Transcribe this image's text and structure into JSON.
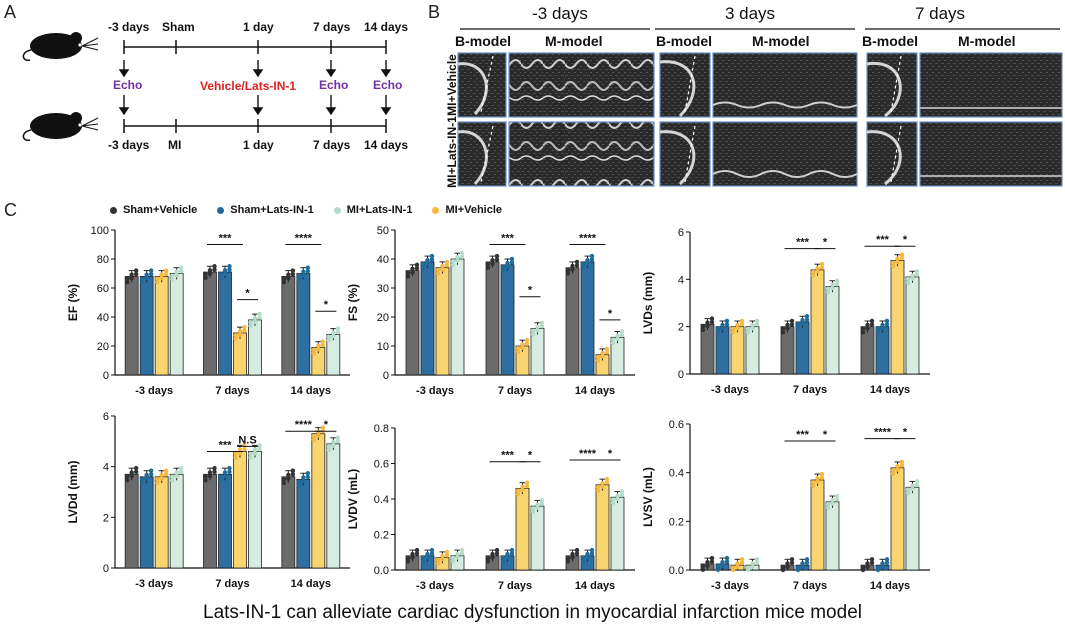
{
  "panels": {
    "a": "A",
    "b": "B",
    "c": "C"
  },
  "timeline": {
    "top_labels": [
      "-3 days",
      "Sham",
      "1 day",
      "7 days",
      "14 days"
    ],
    "bottom_labels": [
      "-3 days",
      "MI",
      "1 day",
      "7 days",
      "14 days"
    ],
    "echo_labels": [
      "Echo",
      "Echo",
      "Echo"
    ],
    "treatment": "Vehicle/Lats-IN-1"
  },
  "echo": {
    "timepoints": [
      "-3 days",
      "3 days",
      "7 days"
    ],
    "modes": [
      "B-model",
      "M-model"
    ],
    "rows": [
      "MI+Vehicle",
      "MI+Lats-IN-1"
    ]
  },
  "legend": [
    {
      "label": "Sham+Vehicle",
      "color": "#333333"
    },
    {
      "label": "Sham+Lats-IN-1",
      "color": "#1e6b9c"
    },
    {
      "label": "MI+Lats-IN-1",
      "color": "#cfe8dc"
    },
    {
      "label": "MI+Vehicle",
      "color": "#f7c744"
    }
  ],
  "colors": {
    "bar": [
      "#6b6b6b",
      "#2d6fa1",
      "#f8d56f",
      "#d6ece1"
    ],
    "dot": [
      "#333333",
      "#1e6b9c",
      "#f4b940",
      "#b5dcc8"
    ]
  },
  "chart_data": [
    {
      "type": "bar",
      "ylabel": "EF (%)",
      "ylim": [
        0,
        100
      ],
      "yticks": [
        "0",
        "20",
        "40",
        "60",
        "80",
        "100"
      ],
      "categories": [
        "-3 days",
        "7 days",
        "14 days"
      ],
      "series": [
        {
          "name": "Sham+Vehicle",
          "values": [
            68,
            71,
            68
          ]
        },
        {
          "name": "Sham+Lats-IN-1",
          "values": [
            68,
            71,
            70
          ]
        },
        {
          "name": "MI+Vehicle",
          "values": [
            68,
            29,
            19
          ]
        },
        {
          "name": "MI+Lats-IN-1",
          "values": [
            70,
            38,
            28
          ]
        }
      ],
      "annotations": [
        {
          "label": "***",
          "group": 1,
          "from": 0,
          "to": 2,
          "y": 90
        },
        {
          "label": "*",
          "group": 1,
          "from": 2,
          "to": 3,
          "y": 52
        },
        {
          "label": "****",
          "group": 2,
          "from": 0,
          "to": 2,
          "y": 90
        },
        {
          "label": "*",
          "group": 2,
          "from": 2,
          "to": 3,
          "y": 44
        }
      ]
    },
    {
      "type": "bar",
      "ylabel": "FS (%)",
      "ylim": [
        0,
        50
      ],
      "yticks": [
        "0",
        "10",
        "20",
        "30",
        "40",
        "50"
      ],
      "categories": [
        "-3 days",
        "7 days",
        "14 days"
      ],
      "series": [
        {
          "name": "Sham+Vehicle",
          "values": [
            36,
            39,
            37
          ]
        },
        {
          "name": "Sham+Lats-IN-1",
          "values": [
            39,
            38,
            39
          ]
        },
        {
          "name": "MI+Vehicle",
          "values": [
            37,
            10,
            7
          ]
        },
        {
          "name": "MI+Lats-IN-1",
          "values": [
            40,
            16,
            13
          ]
        }
      ],
      "annotations": [
        {
          "label": "***",
          "group": 1,
          "from": 0,
          "to": 2,
          "y": 45
        },
        {
          "label": "*",
          "group": 1,
          "from": 2,
          "to": 3,
          "y": 27
        },
        {
          "label": "****",
          "group": 2,
          "from": 0,
          "to": 2,
          "y": 45
        },
        {
          "label": "*",
          "group": 2,
          "from": 2,
          "to": 3,
          "y": 19
        }
      ]
    },
    {
      "type": "bar",
      "ylabel": "LVDs (mm)",
      "ylim": [
        0,
        6
      ],
      "yticks": [
        "0",
        "2",
        "4",
        "6"
      ],
      "categories": [
        "-3 days",
        "7 days",
        "14 days"
      ],
      "series": [
        {
          "name": "Sham+Vehicle",
          "values": [
            2.1,
            2.0,
            2.0
          ]
        },
        {
          "name": "Sham+Lats-IN-1",
          "values": [
            2.0,
            2.2,
            2.0
          ]
        },
        {
          "name": "MI+Vehicle",
          "values": [
            2.0,
            4.4,
            4.8
          ]
        },
        {
          "name": "MI+Lats-IN-1",
          "values": [
            2.0,
            3.7,
            4.1
          ]
        }
      ],
      "annotations": [
        {
          "label": "***",
          "group": 1,
          "from": 0,
          "to": 2,
          "y": 5.3
        },
        {
          "label": "*",
          "group": 1,
          "from": 2,
          "to": 3,
          "y": 5.3
        },
        {
          "label": "***",
          "group": 2,
          "from": 0,
          "to": 2,
          "y": 5.4
        },
        {
          "label": "*",
          "group": 2,
          "from": 2,
          "to": 3,
          "y": 5.4
        }
      ]
    },
    {
      "type": "bar",
      "ylabel": "LVDd (mm)",
      "ylim": [
        0,
        6
      ],
      "yticks": [
        "0",
        "2",
        "4",
        "6"
      ],
      "categories": [
        "-3 days",
        "7 days",
        "14 days"
      ],
      "series": [
        {
          "name": "Sham+Vehicle",
          "values": [
            3.7,
            3.7,
            3.6
          ]
        },
        {
          "name": "Sham+Lats-IN-1",
          "values": [
            3.6,
            3.7,
            3.5
          ]
        },
        {
          "name": "MI+Vehicle",
          "values": [
            3.6,
            4.6,
            5.3
          ]
        },
        {
          "name": "MI+Lats-IN-1",
          "values": [
            3.7,
            4.6,
            4.9
          ]
        }
      ],
      "annotations": [
        {
          "label": "***",
          "group": 1,
          "from": 0,
          "to": 2,
          "y": 4.6
        },
        {
          "label": "N.S",
          "group": 1,
          "from": 2,
          "to": 3,
          "y": 4.8
        },
        {
          "label": "****",
          "group": 2,
          "from": 0,
          "to": 2,
          "y": 5.4
        },
        {
          "label": "*",
          "group": 2,
          "from": 2,
          "to": 3,
          "y": 5.4
        }
      ]
    },
    {
      "type": "bar",
      "ylabel": "LVDV (mL)",
      "ylim": [
        0,
        0.8
      ],
      "yticks": [
        "0.0",
        "0.2",
        "0.4",
        "0.6",
        "0.8"
      ],
      "categories": [
        "-3 days",
        "7 days",
        "14 days"
      ],
      "series": [
        {
          "name": "Sham+Vehicle",
          "values": [
            0.08,
            0.08,
            0.08
          ]
        },
        {
          "name": "Sham+Lats-IN-1",
          "values": [
            0.08,
            0.08,
            0.08
          ]
        },
        {
          "name": "MI+Vehicle",
          "values": [
            0.07,
            0.46,
            0.48
          ]
        },
        {
          "name": "MI+Lats-IN-1",
          "values": [
            0.08,
            0.36,
            0.41
          ]
        }
      ],
      "annotations": [
        {
          "label": "***",
          "group": 1,
          "from": 0,
          "to": 2,
          "y": 0.61
        },
        {
          "label": "*",
          "group": 1,
          "from": 2,
          "to": 3,
          "y": 0.61
        },
        {
          "label": "****",
          "group": 2,
          "from": 0,
          "to": 2,
          "y": 0.62
        },
        {
          "label": "*",
          "group": 2,
          "from": 2,
          "to": 3,
          "y": 0.62
        }
      ]
    },
    {
      "type": "bar",
      "ylabel": "LVSV (mL)",
      "ylim": [
        0,
        0.6
      ],
      "yticks": [
        "0.0",
        "0.2",
        "0.4",
        "0.6"
      ],
      "categories": [
        "-3 days",
        "7 days",
        "14 days"
      ],
      "series": [
        {
          "name": "Sham+Vehicle",
          "values": [
            0.025,
            0.02,
            0.02
          ]
        },
        {
          "name": "Sham+Lats-IN-1",
          "values": [
            0.025,
            0.02,
            0.02
          ]
        },
        {
          "name": "MI+Vehicle",
          "values": [
            0.02,
            0.37,
            0.42
          ]
        },
        {
          "name": "MI+Lats-IN-1",
          "values": [
            0.02,
            0.28,
            0.34
          ]
        }
      ],
      "annotations": [
        {
          "label": "***",
          "group": 1,
          "from": 0,
          "to": 2,
          "y": 0.53
        },
        {
          "label": "*",
          "group": 1,
          "from": 2,
          "to": 3,
          "y": 0.53
        },
        {
          "label": "****",
          "group": 2,
          "from": 0,
          "to": 2,
          "y": 0.54
        },
        {
          "label": "*",
          "group": 2,
          "from": 2,
          "to": 3,
          "y": 0.54
        }
      ]
    }
  ],
  "caption": "Lats-IN-1  can alleviate cardiac dysfunction in myocardial infarction mice model"
}
